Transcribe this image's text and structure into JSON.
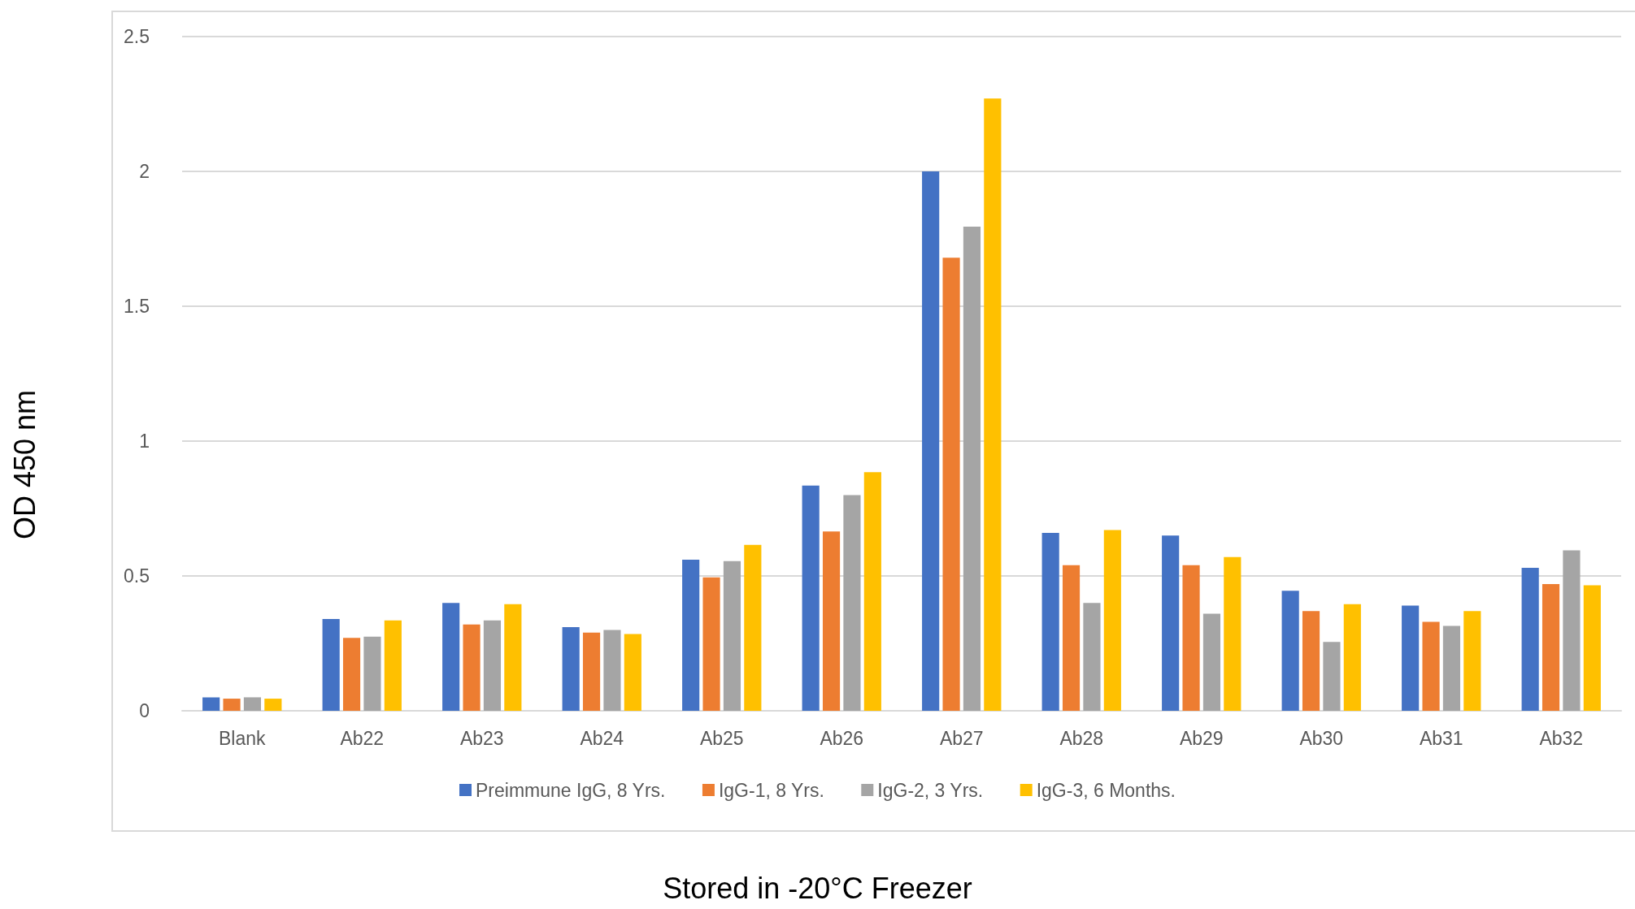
{
  "chart_data": {
    "type": "bar",
    "xlabel": "Stored in -20°C Freezer",
    "ylabel": "OD 450 nm",
    "categories": [
      "Blank",
      "Ab22",
      "Ab23",
      "Ab24",
      "Ab25",
      "Ab26",
      "Ab27",
      "Ab28",
      "Ab29",
      "Ab30",
      "Ab31",
      "Ab32"
    ],
    "series": [
      {
        "name": "Preimmune IgG, 8 Yrs.",
        "color": "#4472c4",
        "values": [
          0.05,
          0.34,
          0.4,
          0.31,
          0.56,
          0.835,
          2.0,
          0.66,
          0.65,
          0.445,
          0.39,
          0.53
        ]
      },
      {
        "name": "IgG-1, 8 Yrs.",
        "color": "#ed7d31",
        "values": [
          0.045,
          0.27,
          0.32,
          0.29,
          0.495,
          0.665,
          1.68,
          0.54,
          0.54,
          0.37,
          0.33,
          0.47
        ]
      },
      {
        "name": "IgG-2, 3 Yrs.",
        "color": "#a5a5a5",
        "values": [
          0.05,
          0.275,
          0.335,
          0.3,
          0.555,
          0.8,
          1.795,
          0.4,
          0.36,
          0.255,
          0.315,
          0.595
        ]
      },
      {
        "name": "IgG-3, 6 Months.",
        "color": "#ffc000",
        "values": [
          0.045,
          0.335,
          0.395,
          0.285,
          0.615,
          0.885,
          2.27,
          0.67,
          0.57,
          0.395,
          0.37,
          0.465
        ]
      }
    ],
    "ylim": [
      0,
      2.5
    ],
    "yticks": [
      0,
      0.5,
      1,
      1.5,
      2,
      2.5
    ],
    "grid": "y",
    "legend": "bottom"
  }
}
